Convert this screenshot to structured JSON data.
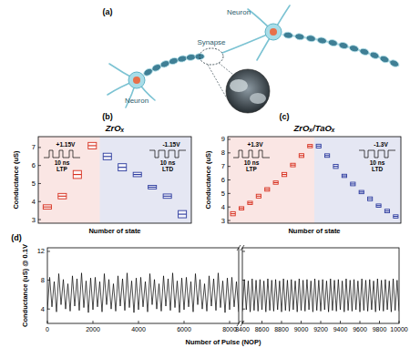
{
  "illustration": {
    "panel_label": "(a)",
    "labels": [
      "Neuron",
      "Neuron",
      "Synapse"
    ]
  },
  "chart_data": [
    {
      "type": "box",
      "panel_label": "(b)",
      "title": "ZrOₓ",
      "x_label": "Number of state",
      "y_label": "Conductance (uS)",
      "xlim": [
        0.4,
        10.6
      ],
      "ylim": [
        2.8,
        7.6
      ],
      "yticks": [
        3,
        4,
        5,
        6,
        7
      ],
      "tick_labels": "y",
      "annotations": [
        "+1.15V",
        "10 ns",
        "LTP",
        "-1.15V",
        "10 ns",
        "LTD"
      ],
      "series": [
        {
          "color": "#d7301f",
          "x": [
            1,
            2,
            3,
            4
          ],
          "values": [
            3.7,
            4.3,
            5.5,
            7.1
          ],
          "errors": [
            0.12,
            0.15,
            0.22,
            0.18
          ]
        },
        {
          "color": "#2b3a9e",
          "x": [
            5,
            6,
            7,
            8,
            9,
            10
          ],
          "values": [
            6.5,
            5.9,
            5.5,
            4.8,
            4.3,
            3.3
          ],
          "errors": [
            0.18,
            0.2,
            0.12,
            0.1,
            0.12,
            0.2
          ]
        }
      ]
    },
    {
      "type": "box",
      "panel_label": "(c)",
      "title": "ZrOₓ/TaOₓ",
      "x_label": "Number of state",
      "y_label": "Conductance (uS)",
      "xlim": [
        0.4,
        20.6
      ],
      "ylim": [
        2.8,
        9.2
      ],
      "yticks": [
        3,
        4,
        5,
        6,
        7,
        8,
        9
      ],
      "tick_labels": "y",
      "annotations": [
        "+1.3V",
        "10 ns",
        "LTP",
        "-1.3V",
        "10 ns",
        "LTD"
      ],
      "series": [
        {
          "color": "#d7301f",
          "x": [
            1,
            2,
            3,
            4,
            5,
            6,
            7,
            8,
            9,
            10
          ],
          "values": [
            3.5,
            3.9,
            4.3,
            4.8,
            5.3,
            5.8,
            6.4,
            7.1,
            7.8,
            8.5
          ],
          "errors": [
            0.15,
            0.12,
            0.12,
            0.14,
            0.13,
            0.12,
            0.15,
            0.13,
            0.14,
            0.12
          ]
        },
        {
          "color": "#2b3a9e",
          "x": [
            11,
            12,
            13,
            14,
            15,
            16,
            17,
            18,
            19,
            20
          ],
          "values": [
            8.5,
            7.8,
            7.0,
            6.3,
            5.7,
            5.1,
            4.6,
            4.1,
            3.7,
            3.3
          ],
          "errors": [
            0.14,
            0.13,
            0.15,
            0.12,
            0.13,
            0.12,
            0.14,
            0.12,
            0.13,
            0.12
          ]
        }
      ]
    },
    {
      "type": "line",
      "panel_label": "(d)",
      "x_label": "Number of Pulse (NOP)",
      "y_label": "Conductance (uS) @ 0.1V",
      "xlim": [
        0,
        8400
      ],
      "xticks": [
        0,
        2000,
        4000,
        6000,
        8000
      ],
      "ylim": [
        2,
        12.5
      ],
      "yticks": [
        4,
        8,
        12
      ],
      "series": [
        {
          "color": "#000000",
          "x": [
            0,
            100,
            200,
            300,
            400,
            500,
            600,
            700,
            800,
            900,
            1000,
            1100,
            1200,
            1300,
            1400,
            1500,
            1600,
            1700,
            1800,
            1900,
            2000,
            2100,
            2200,
            2300,
            2400,
            2500,
            2600,
            2700,
            2800,
            2900,
            3000,
            3100,
            3200,
            3300,
            3400,
            3500,
            3600,
            3700,
            3800,
            3900,
            4000,
            4100,
            4200,
            4300,
            4400,
            4500,
            4600,
            4700,
            4800,
            4900,
            5000,
            5100,
            5200,
            5300,
            5400,
            5500,
            5600,
            5700,
            5800,
            5900,
            6000,
            6100,
            6200,
            6300,
            6400,
            6500,
            6600,
            6700,
            6800,
            6900,
            7000,
            7100,
            7200,
            7300,
            7400,
            7500,
            7600,
            7700,
            7800,
            7900,
            8000,
            8100,
            8200,
            8300,
            8400
          ],
          "values": [
            3.9,
            8.4,
            4.3,
            7.8,
            3.6,
            8.9,
            4.6,
            8.1,
            4.0,
            7.5,
            3.7,
            8.6,
            4.4,
            8.2,
            3.8,
            9.0,
            4.2,
            7.9,
            3.5,
            8.3,
            3.9,
            8.4,
            4.3,
            7.8,
            3.6,
            8.9,
            4.6,
            8.1,
            4.0,
            7.5,
            3.7,
            8.6,
            4.4,
            8.2,
            3.8,
            9.0,
            4.2,
            7.9,
            3.5,
            8.3,
            3.9,
            8.4,
            4.3,
            7.8,
            3.6,
            8.9,
            4.6,
            8.1,
            4.0,
            7.5,
            3.7,
            8.6,
            4.4,
            8.2,
            3.8,
            9.0,
            4.2,
            7.9,
            3.5,
            8.3,
            3.9,
            8.4,
            4.3,
            7.8,
            3.6,
            8.9,
            4.6,
            8.1,
            4.0,
            7.5,
            3.7,
            8.6,
            4.4,
            8.2,
            3.8,
            9.0,
            4.2,
            7.9,
            3.5,
            8.3,
            3.9,
            8.4,
            4.3,
            7.8,
            3.6
          ]
        }
      ]
    },
    {
      "type": "line",
      "xlim": [
        8400,
        10000
      ],
      "xticks": [
        8400,
        8600,
        8800,
        9000,
        9200,
        9400,
        9600,
        9800,
        10000
      ],
      "ylim": [
        2,
        12.5
      ],
      "yticks": [
        4,
        8,
        12
      ],
      "tick_labels": "x",
      "series": [
        {
          "color": "#000000",
          "x": [
            8400,
            8420,
            8440,
            8460,
            8480,
            8500,
            8520,
            8540,
            8560,
            8580,
            8600,
            8620,
            8640,
            8660,
            8680,
            8700,
            8720,
            8740,
            8760,
            8780,
            8800,
            8820,
            8840,
            8860,
            8880,
            8900,
            8920,
            8940,
            8960,
            8980,
            9000,
            9020,
            9040,
            9060,
            9080,
            9100,
            9120,
            9140,
            9160,
            9180,
            9200,
            9220,
            9240,
            9260,
            9280,
            9300,
            9320,
            9340,
            9360,
            9380,
            9400,
            9420,
            9440,
            9460,
            9480,
            9500,
            9520,
            9540,
            9560,
            9580,
            9600,
            9620,
            9640,
            9660,
            9680,
            9700,
            9720,
            9740,
            9760,
            9780,
            9800,
            9820,
            9840,
            9860,
            9880,
            9900,
            9920,
            9940,
            9960,
            9980,
            10000
          ],
          "values": [
            3.7,
            8.1,
            3.9,
            7.9,
            3.6,
            8.2,
            3.8,
            8.0,
            3.7,
            8.1,
            3.9,
            7.9,
            3.6,
            8.2,
            3.8,
            8.0,
            3.7,
            8.1,
            3.9,
            7.9,
            3.6,
            8.2,
            3.8,
            8.0,
            3.7,
            8.1,
            3.9,
            7.9,
            3.6,
            8.2,
            3.8,
            8.0,
            3.7,
            8.1,
            3.9,
            7.9,
            3.6,
            8.2,
            3.8,
            8.0,
            3.7,
            8.1,
            3.9,
            7.9,
            3.6,
            8.2,
            3.8,
            8.0,
            3.7,
            8.1,
            3.9,
            7.9,
            3.6,
            8.2,
            3.8,
            8.0,
            3.7,
            8.1,
            3.9,
            7.9,
            3.6,
            8.2,
            3.8,
            8.0,
            3.7,
            8.1,
            3.9,
            7.9,
            3.6,
            8.2,
            3.8,
            8.0,
            3.7,
            8.1,
            3.9,
            7.9,
            3.6,
            8.2,
            3.8,
            8.0,
            3.7
          ]
        }
      ]
    }
  ]
}
